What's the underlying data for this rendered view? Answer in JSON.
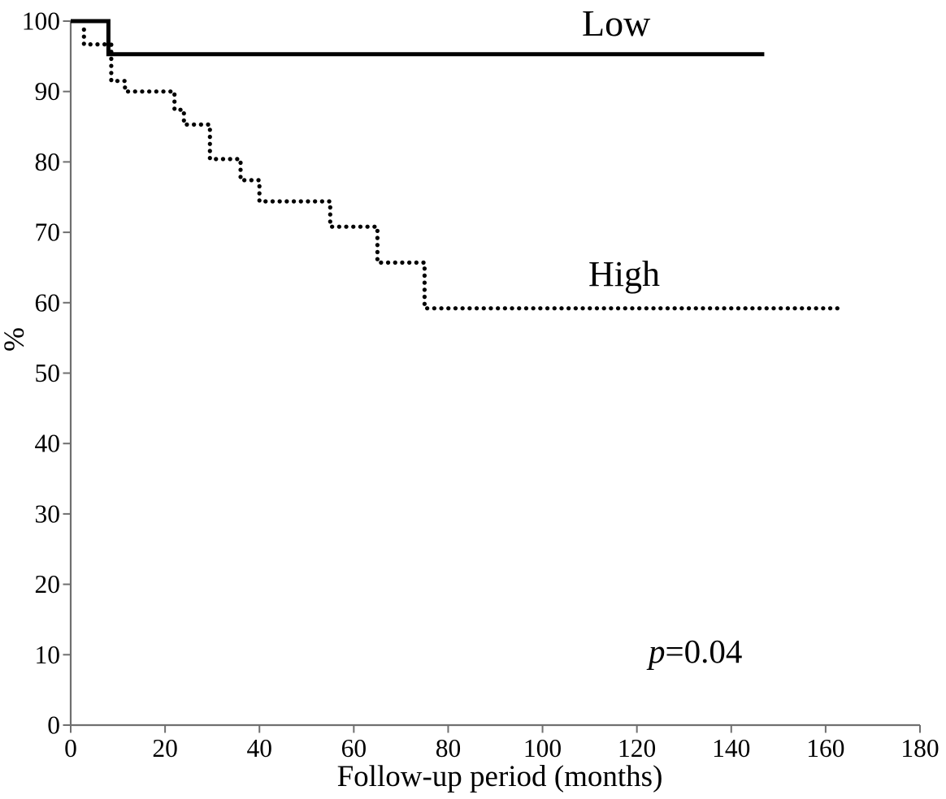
{
  "figure": {
    "p_annotation_full": "p=0.04"
  },
  "chart_data": {
    "type": "line",
    "subtype": "kaplan-meier-step",
    "title": "",
    "xlabel": "Follow-up period (months)",
    "ylabel": "%",
    "xlim": [
      0,
      180
    ],
    "ylim": [
      0,
      100
    ],
    "x_ticks": [
      0,
      20,
      40,
      60,
      80,
      100,
      120,
      140,
      160,
      180
    ],
    "y_ticks": [
      0,
      10,
      20,
      30,
      40,
      50,
      60,
      70,
      80,
      90,
      100
    ],
    "grid": false,
    "legend_position": "inline-labels",
    "annotation": "p=0.04",
    "annotation_parts": {
      "p": "p",
      "rest": "=0.04"
    },
    "colors": {
      "curve": "#000000",
      "axis": "#6f6f6f",
      "text": "#000000",
      "background": "#ffffff"
    },
    "series": [
      {
        "name": "Low",
        "style": "solid",
        "color": "#000000",
        "points": [
          [
            0,
            100
          ],
          [
            8,
            100
          ],
          [
            8,
            95.3
          ],
          [
            147,
            95.3
          ]
        ]
      },
      {
        "name": "High",
        "style": "dotted",
        "color": "#000000",
        "points": [
          [
            2.8,
            98.8
          ],
          [
            2.8,
            96.7
          ],
          [
            8.6,
            96.7
          ],
          [
            8.6,
            91.5
          ],
          [
            11.5,
            91.5
          ],
          [
            11.5,
            90
          ],
          [
            22,
            90
          ],
          [
            22,
            87.4
          ],
          [
            24,
            87.4
          ],
          [
            24,
            85.3
          ],
          [
            29.5,
            85.3
          ],
          [
            29.5,
            80.4
          ],
          [
            36,
            80.4
          ],
          [
            36,
            77.4
          ],
          [
            40,
            77.4
          ],
          [
            40,
            74.4
          ],
          [
            55,
            74.4
          ],
          [
            55,
            70.8
          ],
          [
            65,
            70.8
          ],
          [
            65,
            65.7
          ],
          [
            75,
            65.7
          ],
          [
            75,
            59.2
          ],
          [
            162.5,
            59.2
          ]
        ]
      }
    ]
  }
}
